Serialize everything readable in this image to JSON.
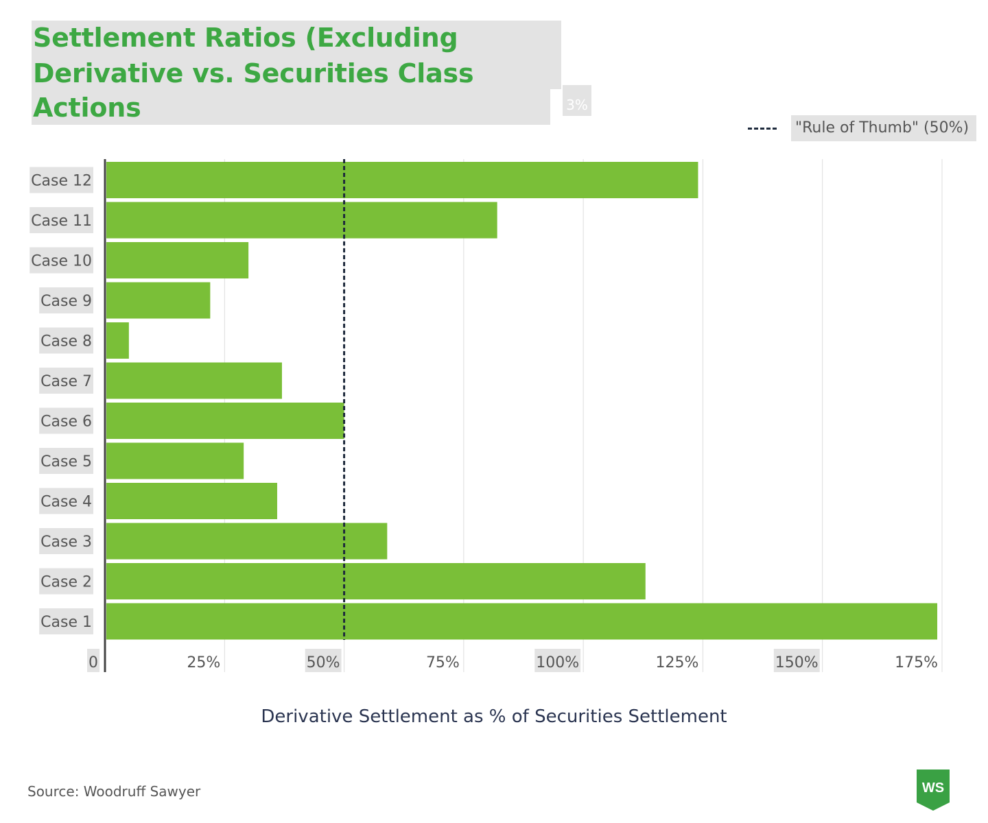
{
  "title_line1": "Settlement Ratios (Excluding Outlier):",
  "title_line2": "Derivative vs. Securities Class Actions",
  "stray_label": "3%",
  "legend": {
    "label": "\"Rule of Thumb\" (50%)"
  },
  "source": "Source: Woodruff Sawyer",
  "logo_text": "WS",
  "colors": {
    "bar": "#7abf38",
    "title": "#3da843",
    "reference_line": "#1e2a3c",
    "label_bg": "#e3e3e3",
    "logo": "#3aa144"
  },
  "chart_data": {
    "type": "bar",
    "orientation": "horizontal",
    "categories": [
      "Case 12",
      "Case 11",
      "Case 10",
      "Case 9",
      "Case 8",
      "Case 7",
      "Case 6",
      "Case 5",
      "Case 4",
      "Case 3",
      "Case 2",
      "Case 1"
    ],
    "values": [
      124,
      82,
      30,
      22,
      5,
      37,
      50,
      29,
      36,
      59,
      113,
      174
    ],
    "xlabel": "Derivative Settlement as % of Securities Settlement",
    "xlim": [
      0,
      175
    ],
    "xticks": [
      0,
      25,
      50,
      75,
      100,
      125,
      150,
      175
    ],
    "xtick_labels": [
      "0",
      "25%",
      "50%",
      "75%",
      "100%",
      "125%",
      "150%",
      "175%"
    ],
    "highlighted_ticks": [
      0,
      50,
      100,
      150
    ],
    "reference_line": {
      "value": 50,
      "label": "\"Rule of Thumb\" (50%)",
      "style": "dashed"
    },
    "grid": true,
    "legend_position": "top-right"
  }
}
